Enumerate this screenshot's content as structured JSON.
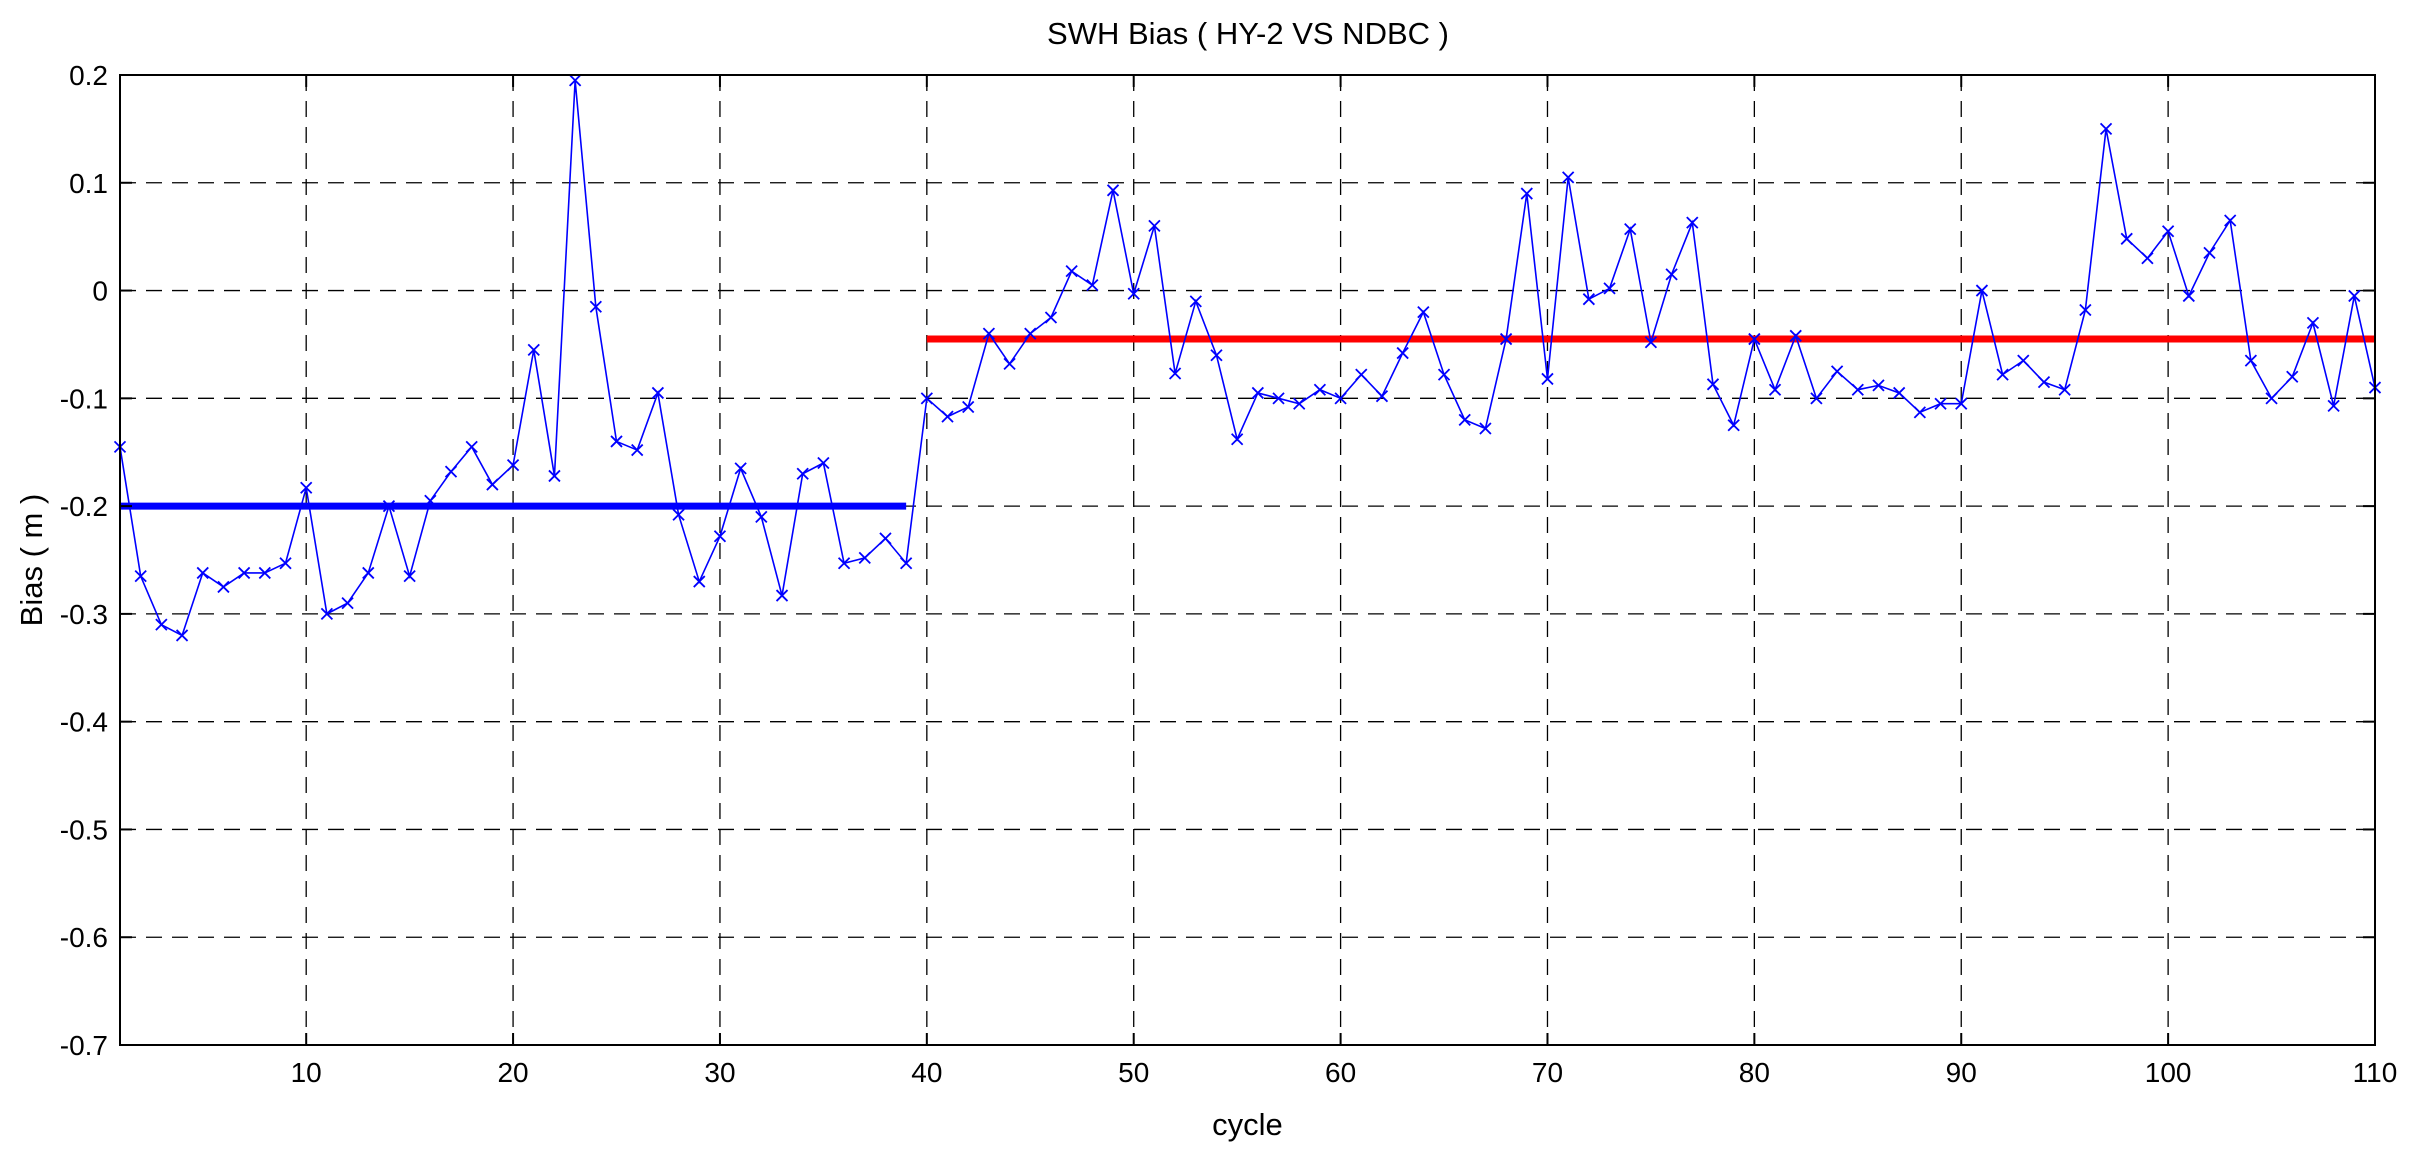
{
  "chart_data": {
    "type": "line",
    "title": "SWH Bias ( HY-2 VS NDBC )",
    "xlabel": "cycle",
    "ylabel": "Bias ( m )",
    "xlim": [
      1,
      110
    ],
    "ylim": [
      -0.7,
      0.2
    ],
    "x_ticks": [
      10,
      20,
      30,
      40,
      50,
      60,
      70,
      80,
      90,
      100,
      110
    ],
    "y_ticks": [
      -0.7,
      -0.6,
      -0.5,
      -0.4,
      -0.3,
      -0.2,
      -0.1,
      0,
      0.1,
      0.2
    ],
    "x_tick_labels": [
      "10",
      "20",
      "30",
      "40",
      "50",
      "60",
      "70",
      "80",
      "90",
      "100",
      "110"
    ],
    "y_tick_labels": [
      "-0.7",
      "-0.6",
      "-0.5",
      "-0.4",
      "-0.3",
      "-0.2",
      "-0.1",
      "0",
      "0.1",
      "0.2"
    ],
    "grid": true,
    "grid_style": "dashed",
    "legend": "none",
    "series": [
      {
        "color": "#0000ff",
        "marker": "x",
        "x": [
          1,
          2,
          3,
          4,
          5,
          6,
          7,
          8,
          9,
          10,
          11,
          12,
          13,
          14,
          15,
          16,
          17,
          18,
          19,
          20,
          21,
          22,
          23,
          24,
          25,
          26,
          27,
          28,
          29,
          30,
          31,
          32,
          33,
          34,
          35,
          36,
          37,
          38,
          39,
          40,
          41,
          42,
          43,
          44,
          45,
          46,
          47,
          48,
          49,
          50,
          51,
          52,
          53,
          54,
          55,
          56,
          57,
          58,
          59,
          60,
          61,
          62,
          63,
          64,
          65,
          66,
          67,
          68,
          69,
          70,
          71,
          72,
          73,
          74,
          75,
          76,
          77,
          78,
          79,
          80,
          81,
          82,
          83,
          84,
          85,
          86,
          87,
          88,
          89,
          90,
          91,
          92,
          93,
          94,
          95,
          96,
          97,
          98,
          99,
          100,
          101,
          102,
          103,
          104,
          105,
          106,
          107,
          108,
          109,
          110
        ],
        "values": [
          -0.145,
          -0.265,
          -0.31,
          -0.32,
          -0.262,
          -0.275,
          -0.262,
          -0.262,
          -0.253,
          -0.183,
          -0.3,
          -0.29,
          -0.262,
          -0.2,
          -0.265,
          -0.195,
          -0.168,
          -0.145,
          -0.18,
          -0.162,
          -0.055,
          -0.172,
          0.195,
          -0.015,
          -0.14,
          -0.148,
          -0.095,
          -0.208,
          -0.27,
          -0.228,
          -0.165,
          -0.21,
          -0.283,
          -0.17,
          -0.16,
          -0.253,
          -0.248,
          -0.23,
          -0.253,
          -0.1,
          -0.117,
          -0.108,
          -0.04,
          -0.068,
          -0.04,
          -0.025,
          0.018,
          0.005,
          0.093,
          -0.003,
          0.06,
          -0.077,
          -0.01,
          -0.06,
          -0.138,
          -0.095,
          -0.1,
          -0.105,
          -0.092,
          -0.1,
          -0.078,
          -0.098,
          -0.058,
          -0.02,
          -0.078,
          -0.12,
          -0.128,
          -0.045,
          0.09,
          -0.082,
          0.105,
          -0.008,
          0.002,
          0.057,
          -0.048,
          0.015,
          0.063,
          -0.087,
          -0.125,
          -0.045,
          -0.092,
          -0.042,
          -0.1,
          -0.075,
          -0.092,
          -0.088,
          -0.095,
          -0.113,
          -0.105,
          -0.105,
          0,
          -0.078,
          -0.065,
          -0.085,
          -0.092,
          -0.018,
          0.15,
          0.048,
          0.03,
          0.055,
          -0.005,
          0.035,
          0.065,
          -0.065,
          -0.1,
          -0.08,
          -0.03,
          -0.107,
          -0.005,
          -0.09
        ]
      },
      {
        "color": "#0000ff",
        "style": "thick-line",
        "x": [
          1,
          39
        ],
        "values": [
          -0.2,
          -0.2
        ]
      },
      {
        "color": "#ff0000",
        "style": "thick-line",
        "x": [
          40,
          110
        ],
        "values": [
          -0.045,
          -0.045
        ]
      }
    ]
  }
}
